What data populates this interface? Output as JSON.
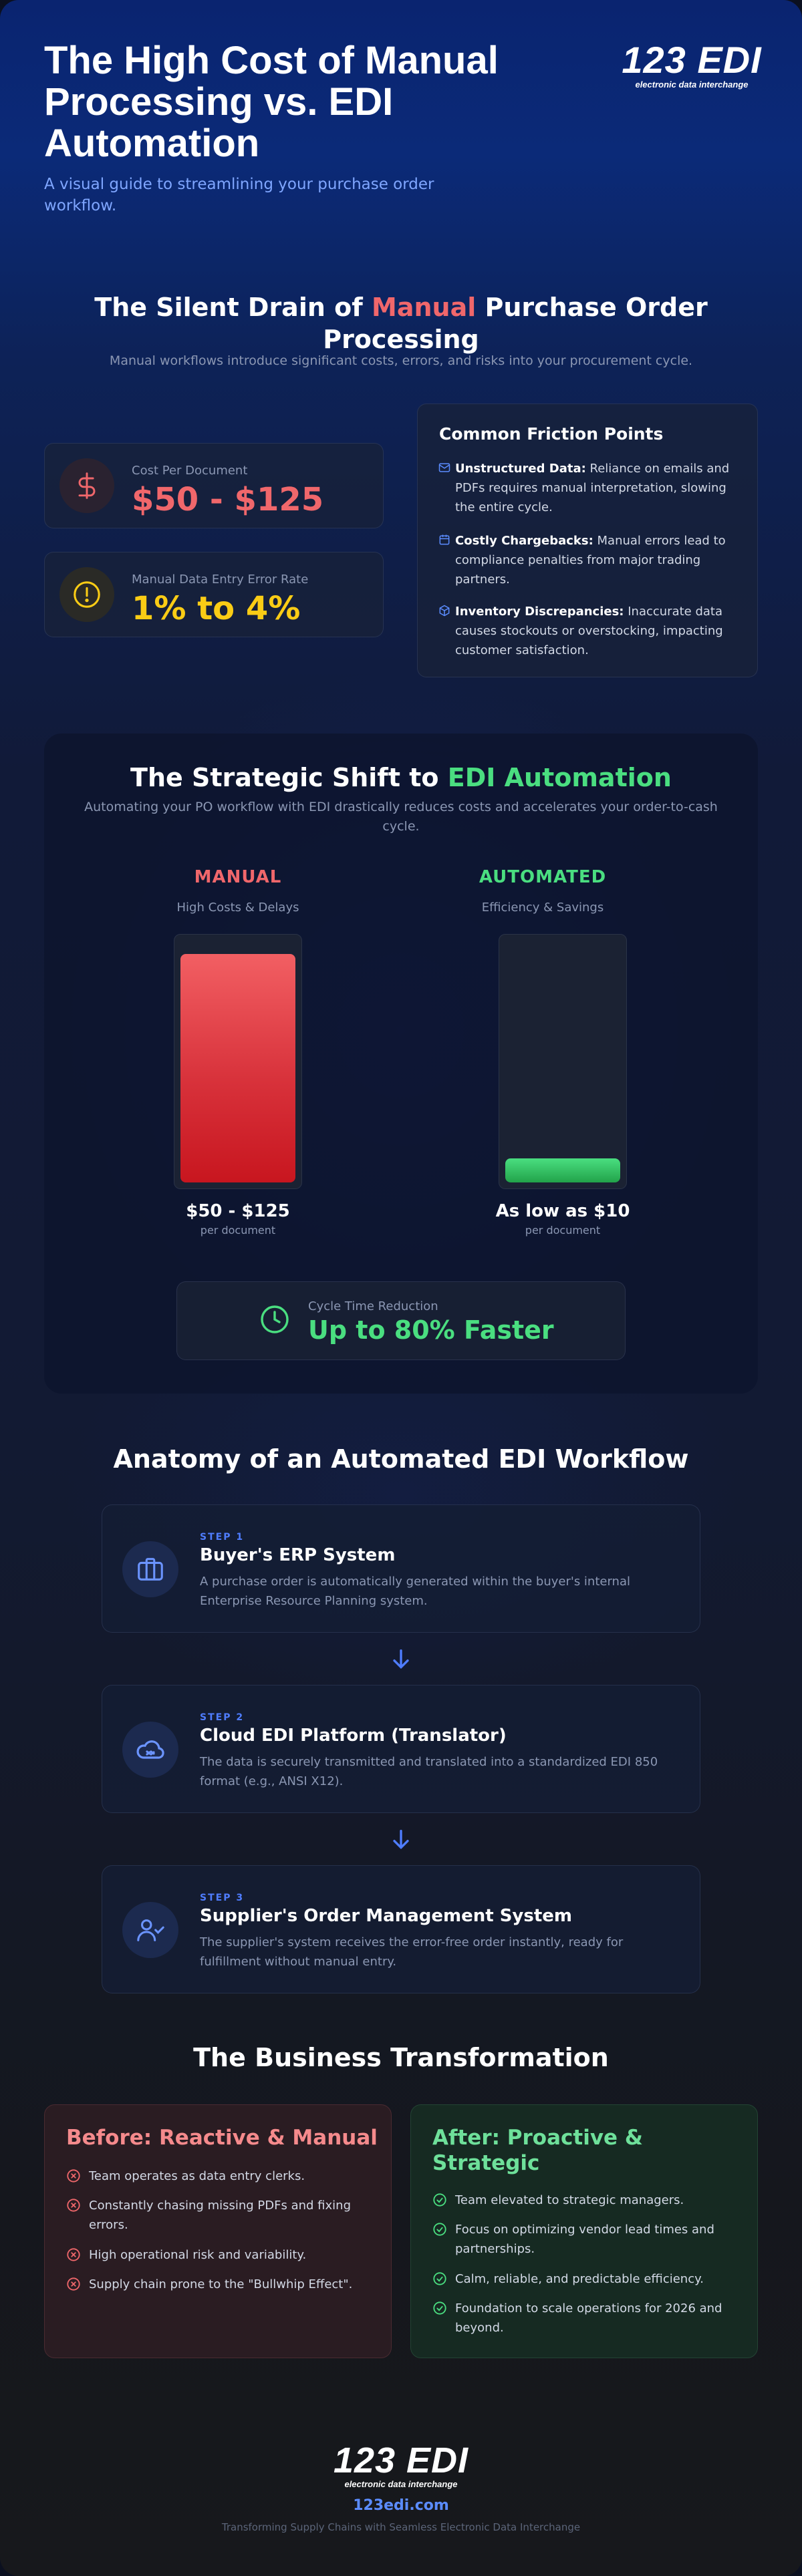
{
  "brand": {
    "logo_text": "123 EDI",
    "logo_tagline": "electronic data interchange",
    "url": "123edi.com",
    "footer_tagline": "Transforming Supply Chains with Seamless Electronic Data Interchange"
  },
  "hero": {
    "title": "The High Cost of Manual Processing vs. EDI Automation",
    "subtitle": "A visual guide to streamlining your purchase order workflow."
  },
  "silent_drain": {
    "title_pre": "The Silent Drain of ",
    "title_accent": "Manual",
    "title_post": " Purchase Order Processing",
    "subtitle": "Manual workflows introduce significant costs, errors, and risks into your procurement cycle.",
    "stats": [
      {
        "label": "Cost Per Document",
        "value": "$50 - $125",
        "icon": "dollar-icon",
        "color": "#f0676b"
      },
      {
        "label": "Manual Data Entry Error Rate",
        "value": "1% to 4%",
        "icon": "alert-icon",
        "color": "#facc15"
      }
    ],
    "friction": {
      "title": "Common Friction Points",
      "items": [
        {
          "icon": "mail-icon",
          "bold": "Unstructured Data:",
          "text": " Reliance on emails and PDFs requires manual interpretation, slowing the entire cycle."
        },
        {
          "icon": "calendar-icon",
          "bold": "Costly Chargebacks:",
          "text": " Manual errors lead to compliance penalties from major trading partners."
        },
        {
          "icon": "box-icon",
          "bold": "Inventory Discrepancies:",
          "text": " Inaccurate data causes stockouts or overstocking, impacting customer satisfaction."
        }
      ]
    }
  },
  "shift": {
    "title_pre": "The Strategic Shift to ",
    "title_accent": "EDI Automation",
    "subtitle": "Automating your PO workflow with EDI drastically reduces costs and accelerates your order-to-cash cycle.",
    "manual": {
      "head": "MANUAL",
      "sub": "High Costs & Delays",
      "value": "$50 - $125",
      "per": "per document",
      "fill": 0.94,
      "color": "#f0676b"
    },
    "automated": {
      "head": "AUTOMATED",
      "sub": "Efficiency & Savings",
      "value": "As low as $10",
      "per": "per document",
      "fill": 0.1,
      "color": "#4ade80"
    },
    "cycle": {
      "label": "Cycle Time Reduction",
      "value": "Up to 80% Faster"
    }
  },
  "workflow": {
    "title": "Anatomy of an Automated EDI Workflow",
    "steps": [
      {
        "num": "STEP 1",
        "title": "Buyer's ERP System",
        "desc": "A purchase order is automatically generated within the buyer's internal Enterprise Resource Planning system.",
        "icon": "briefcase-icon"
      },
      {
        "num": "STEP 2",
        "title": "Cloud EDI Platform (Translator)",
        "desc": "The data is securely transmitted and translated into a standardized EDI 850 format (e.g., ANSI X12).",
        "icon": "cloud-sync-icon"
      },
      {
        "num": "STEP 3",
        "title": "Supplier's Order Management System",
        "desc": "The supplier's system receives the error-free order instantly, ready for fulfillment without manual entry.",
        "icon": "user-check-icon"
      }
    ]
  },
  "transformation": {
    "title": "The Business Transformation",
    "before": {
      "title": "Before: Reactive & Manual",
      "items": [
        "Team operates as data entry clerks.",
        "Constantly chasing missing PDFs and fixing errors.",
        "High operational risk and variability.",
        "Supply chain prone to the \"Bullwhip Effect\"."
      ]
    },
    "after": {
      "title": "After: Proactive & Strategic",
      "items": [
        "Team elevated to strategic managers.",
        "Focus on optimizing vendor lead times and partnerships.",
        "Calm, reliable, and predictable efficiency.",
        "Foundation to scale operations for 2026 and beyond."
      ]
    }
  }
}
